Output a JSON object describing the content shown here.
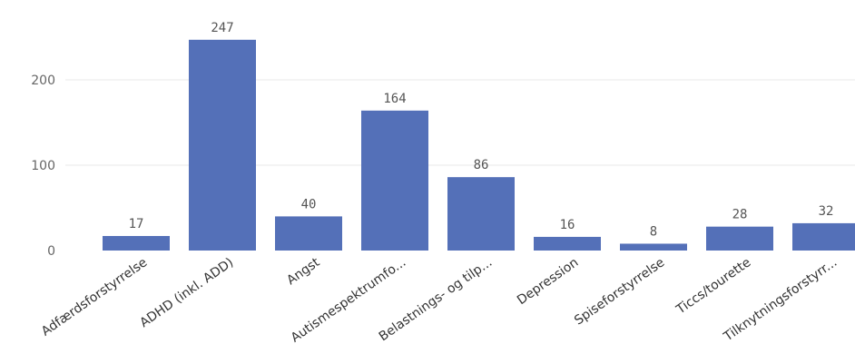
{
  "chart_data": {
    "type": "bar",
    "categories": [
      "Adfærdsforstyrrelse",
      "ADHD (inkl. ADD)",
      "Angst",
      "Autismespektrumfo...",
      "Belastnings- og tilp...",
      "Depression",
      "Spiseforstyrrelse",
      "Ticcs/tourette",
      "Tilknytningsforstyrr..."
    ],
    "values": [
      17,
      247,
      40,
      164,
      86,
      16,
      8,
      28,
      32
    ],
    "data_labels": [
      "17",
      "247",
      "40",
      "164",
      "86",
      "16",
      "8",
      "28",
      "32"
    ],
    "yticks": [
      0,
      100,
      200
    ],
    "ytick_labels": [
      "0",
      "100",
      "200"
    ],
    "ylim": [
      0,
      250
    ],
    "grid": true,
    "bar_color": "#5470b8",
    "title": "",
    "xlabel": "",
    "ylabel": ""
  }
}
